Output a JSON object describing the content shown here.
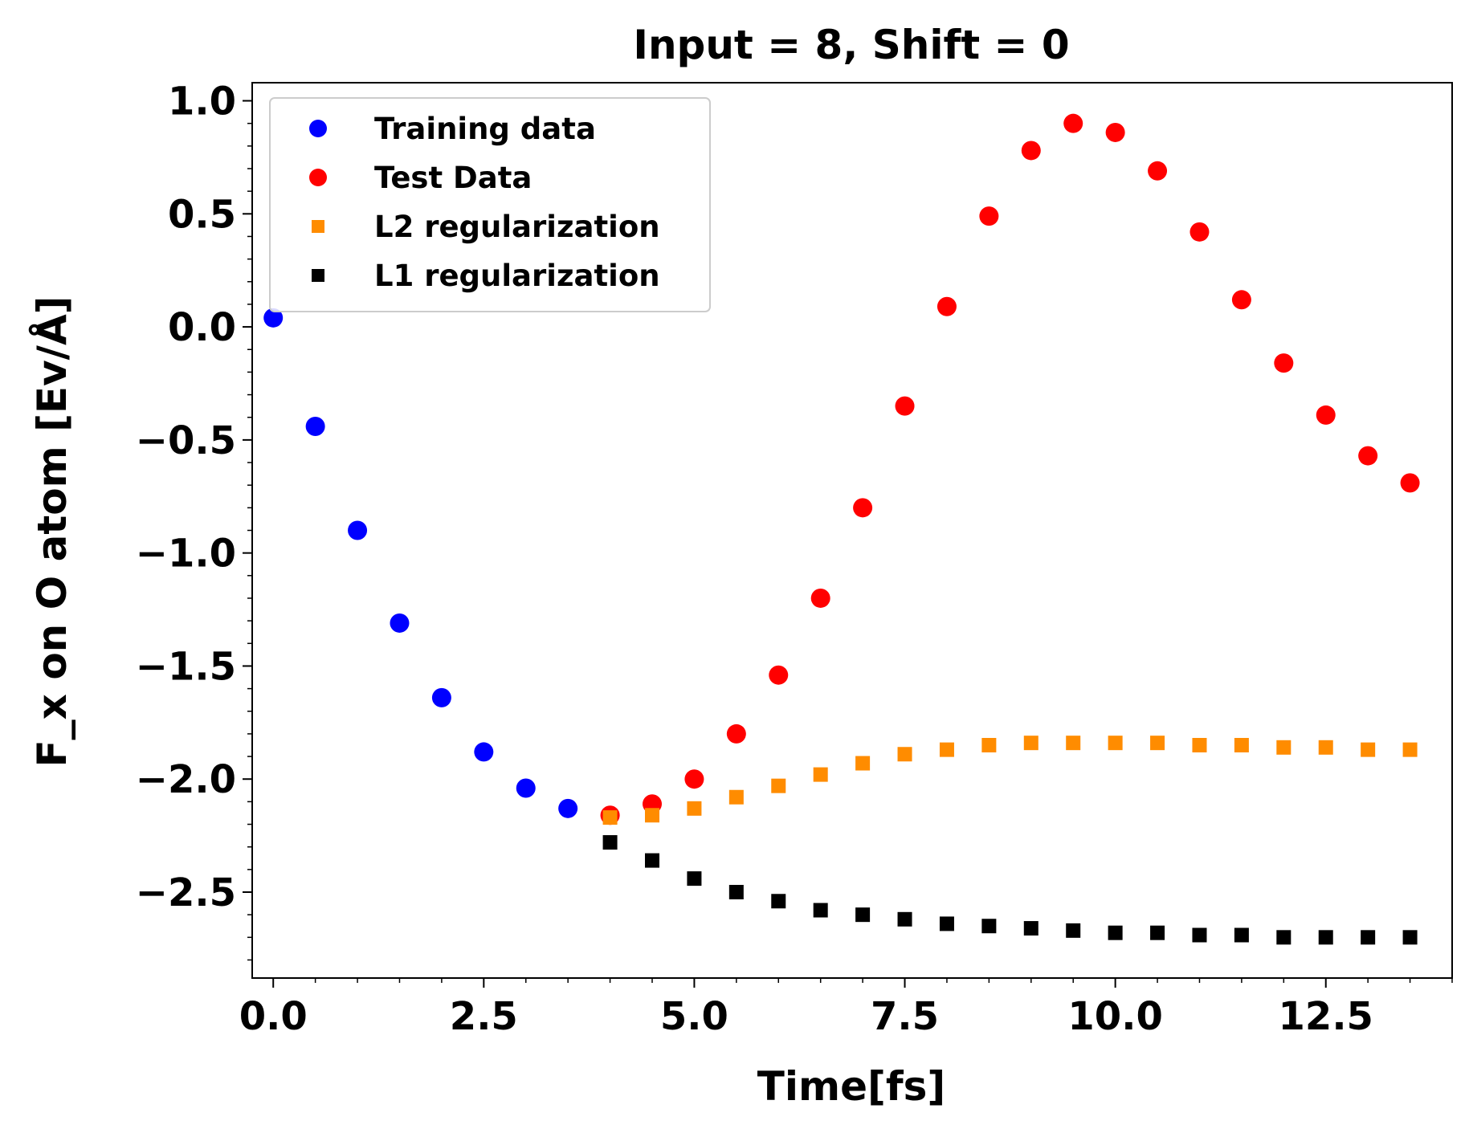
{
  "chart_data": {
    "type": "scatter",
    "title": "Input = 8, Shift = 0",
    "xlabel": "Time[fs]",
    "ylabel": "F_x on O atom [Ev/Å]",
    "xlim": [
      -0.25,
      14.0
    ],
    "ylim": [
      -2.88,
      1.08
    ],
    "xticks": [
      0.0,
      2.5,
      5.0,
      7.5,
      10.0,
      12.5
    ],
    "xtick_labels": [
      "0.0",
      "2.5",
      "5.0",
      "7.5",
      "10.0",
      "12.5"
    ],
    "yticks": [
      1.0,
      0.5,
      0.0,
      -0.5,
      -1.0,
      -1.5,
      -2.0,
      -2.5
    ],
    "ytick_labels": [
      "1.0",
      "0.5",
      "0.0",
      "−0.5",
      "−1.0",
      "−1.5",
      "−2.0",
      "−2.5"
    ],
    "grid": false,
    "legend_position": "top-left",
    "series": [
      {
        "name": "Training data",
        "marker": "circle",
        "color": "#0000ff",
        "x": [
          0.0,
          0.5,
          1.0,
          1.5,
          2.0,
          2.5,
          3.0,
          3.5
        ],
        "y": [
          0.04,
          -0.44,
          -0.9,
          -1.31,
          -1.64,
          -1.88,
          -2.04,
          -2.13
        ]
      },
      {
        "name": "Test Data",
        "marker": "circle",
        "color": "#ff0000",
        "x": [
          4.0,
          4.5,
          5.0,
          5.5,
          6.0,
          6.5,
          7.0,
          7.5,
          8.0,
          8.5,
          9.0,
          9.5,
          10.0,
          10.5,
          11.0,
          11.5,
          12.0,
          12.5,
          13.0,
          13.5
        ],
        "y": [
          -2.16,
          -2.11,
          -2.0,
          -1.8,
          -1.54,
          -1.2,
          -0.8,
          -0.35,
          0.09,
          0.49,
          0.78,
          0.9,
          0.86,
          0.69,
          0.42,
          0.12,
          -0.16,
          -0.39,
          -0.57,
          -0.69
        ]
      },
      {
        "name": "L2 regularization",
        "marker": "square",
        "color": "#ff8c00",
        "x": [
          4.0,
          4.5,
          5.0,
          5.5,
          6.0,
          6.5,
          7.0,
          7.5,
          8.0,
          8.5,
          9.0,
          9.5,
          10.0,
          10.5,
          11.0,
          11.5,
          12.0,
          12.5,
          13.0,
          13.5
        ],
        "y": [
          -2.17,
          -2.16,
          -2.13,
          -2.08,
          -2.03,
          -1.98,
          -1.93,
          -1.89,
          -1.87,
          -1.85,
          -1.84,
          -1.84,
          -1.84,
          -1.84,
          -1.85,
          -1.85,
          -1.86,
          -1.86,
          -1.87,
          -1.87
        ]
      },
      {
        "name": "L1 regularization",
        "marker": "square",
        "color": "#000000",
        "x": [
          4.0,
          4.5,
          5.0,
          5.5,
          6.0,
          6.5,
          7.0,
          7.5,
          8.0,
          8.5,
          9.0,
          9.5,
          10.0,
          10.5,
          11.0,
          11.5,
          12.0,
          12.5,
          13.0,
          13.5
        ],
        "y": [
          -2.28,
          -2.36,
          -2.44,
          -2.5,
          -2.54,
          -2.58,
          -2.6,
          -2.62,
          -2.64,
          -2.65,
          -2.66,
          -2.67,
          -2.68,
          -2.68,
          -2.69,
          -2.69,
          -2.7,
          -2.7,
          -2.7,
          -2.7
        ]
      }
    ]
  }
}
